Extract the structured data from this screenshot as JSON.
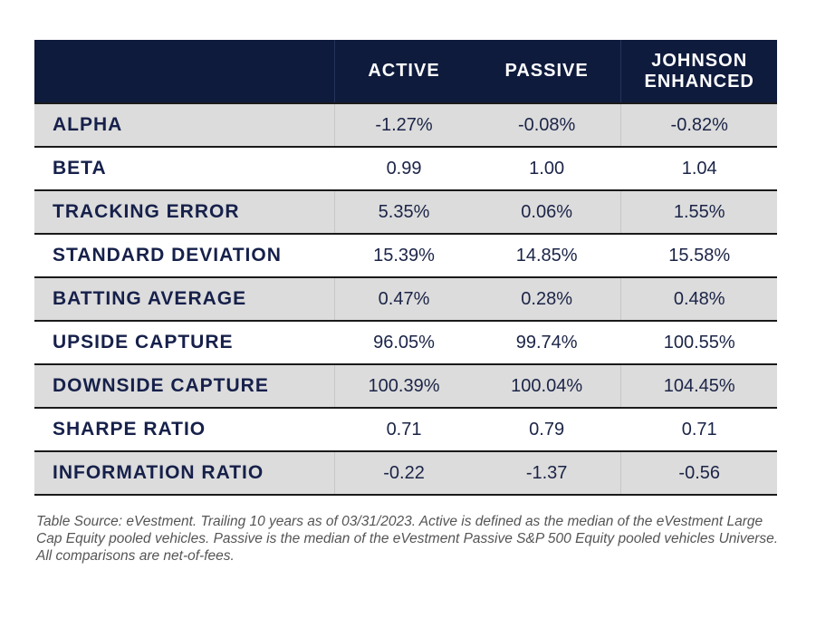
{
  "table": {
    "headers": [
      "",
      "ACTIVE",
      "PASSIVE",
      "JOHNSON\nENHANCED"
    ],
    "rows": [
      {
        "metric": "ALPHA",
        "active": "-1.27%",
        "passive": "-0.08%",
        "johnson": "-0.82%"
      },
      {
        "metric": "BETA",
        "active": "0.99",
        "passive": "1.00",
        "johnson": "1.04"
      },
      {
        "metric": "TRACKING ERROR",
        "active": "5.35%",
        "passive": "0.06%",
        "johnson": "1.55%"
      },
      {
        "metric": "STANDARD DEVIATION",
        "active": "15.39%",
        "passive": "14.85%",
        "johnson": "15.58%"
      },
      {
        "metric": "BATTING AVERAGE",
        "active": "0.47%",
        "passive": "0.28%",
        "johnson": "0.48%"
      },
      {
        "metric": "UPSIDE CAPTURE",
        "active": "96.05%",
        "passive": "99.74%",
        "johnson": "100.55%"
      },
      {
        "metric": "DOWNSIDE CAPTURE",
        "active": "100.39%",
        "passive": "100.04%",
        "johnson": "104.45%"
      },
      {
        "metric": "SHARPE RATIO",
        "active": "0.71",
        "passive": "0.79",
        "johnson": "0.71"
      },
      {
        "metric": "INFORMATION RATIO",
        "active": "-0.22",
        "passive": "-1.37",
        "johnson": "-0.56"
      }
    ]
  },
  "footnote": "Table Source: eVestment. Trailing 10 years as of 03/31/2023. Active is defined as the median of the eVestment Large Cap Equity pooled vehicles. Passive is the median of the eVestment Passive S&P 500 Equity pooled vehicles Universe. All comparisons are net-of-fees.",
  "colors": {
    "header_bg": "#0f1b3d",
    "shaded_row": "#dcdcdc",
    "text": "#16204a"
  }
}
